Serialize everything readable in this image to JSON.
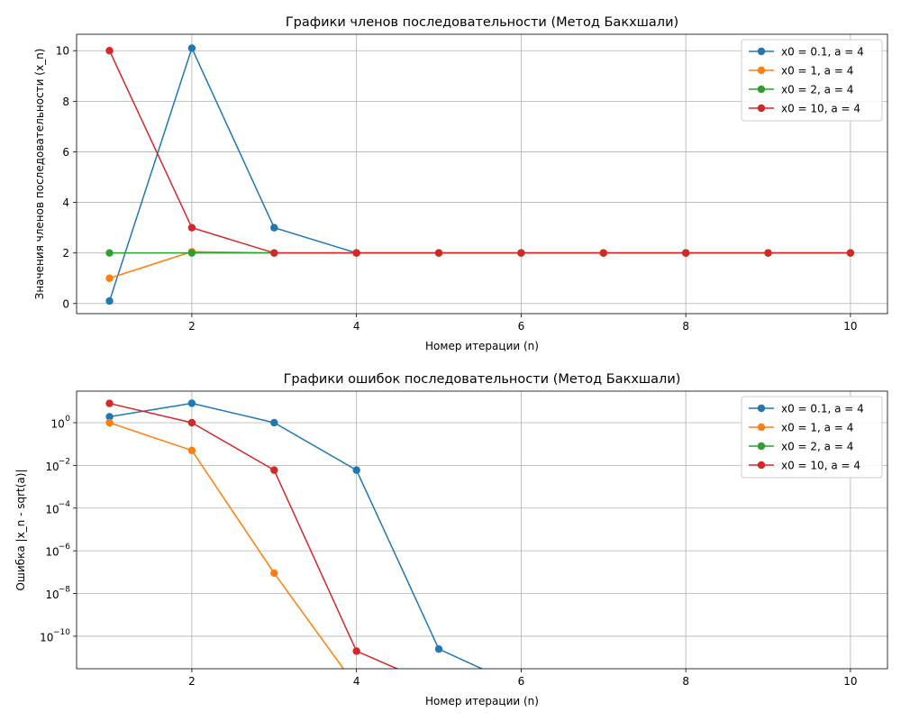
{
  "chart_data": [
    {
      "type": "line",
      "title": "Графики членов последовательности (Метод Бакхшали)",
      "xlabel": "Номер итерации (n)",
      "ylabel": "Значения членов последовательности (x_n)",
      "xlim": [
        0.6,
        10.45
      ],
      "ylim": [
        -0.4,
        10.65
      ],
      "yscale": "linear",
      "xticks": [
        2,
        4,
        6,
        8,
        10
      ],
      "xtick_labels": [
        "2",
        "4",
        "6",
        "8",
        "10"
      ],
      "yticks": [
        0,
        2,
        4,
        6,
        8,
        10
      ],
      "ytick_labels": [
        "0",
        "2",
        "4",
        "6",
        "8",
        "10"
      ],
      "grid": true,
      "legend_position": "top-right",
      "x": [
        1,
        2,
        3,
        4,
        5,
        6,
        7,
        8,
        9,
        10
      ],
      "series": [
        {
          "name": "x0 = 0.1, a = 4",
          "color": "#1f77b4",
          "values": [
            0.1,
            10.1,
            3.0,
            2.0,
            2.0,
            2.0,
            2.0,
            2.0,
            2.0,
            2.0
          ]
        },
        {
          "name": "x0 = 1, a = 4",
          "color": "#ff7f0e",
          "values": [
            1.0,
            2.05,
            2.0,
            2.0,
            2.0,
            2.0,
            2.0,
            2.0,
            2.0,
            2.0
          ]
        },
        {
          "name": "x0 = 2, a = 4",
          "color": "#2ca02c",
          "values": [
            2.0,
            2.0,
            2.0,
            2.0,
            2.0,
            2.0,
            2.0,
            2.0,
            2.0,
            2.0
          ]
        },
        {
          "name": "x0 = 10, a = 4",
          "color": "#d62728",
          "values": [
            10.0,
            3.0,
            2.0,
            2.0,
            2.0,
            2.0,
            2.0,
            2.0,
            2.0,
            2.0
          ]
        }
      ]
    },
    {
      "type": "line",
      "title": "Графики ошибок последовательности (Метод Бакхшали)",
      "xlabel": "Номер итерации (n)",
      "ylabel": "Ошибка |x_n - sqrt(a)|",
      "xlim": [
        0.6,
        10.45
      ],
      "ylim": [
        3e-12,
        30
      ],
      "yscale": "log",
      "xticks": [
        2,
        4,
        6,
        8,
        10
      ],
      "xtick_labels": [
        "2",
        "4",
        "6",
        "8",
        "10"
      ],
      "yticks": [
        1,
        0.01,
        0.0001,
        1e-06,
        1e-08,
        1e-10
      ],
      "ytick_labels": [
        {
          "base": "10",
          "exp": "0"
        },
        {
          "base": "10",
          "exp": "−2"
        },
        {
          "base": "10",
          "exp": "−4"
        },
        {
          "base": "10",
          "exp": "−6"
        },
        {
          "base": "10",
          "exp": "−8"
        },
        {
          "base": "10",
          "exp": "−10"
        }
      ],
      "grid": true,
      "legend_position": "top-right",
      "x": [
        1,
        2,
        3,
        4,
        5,
        6,
        7,
        8,
        9,
        10
      ],
      "series": [
        {
          "name": "x0 = 0.1, a = 4",
          "color": "#1f77b4",
          "values": [
            1.9,
            8.1,
            1.0,
            0.006,
            2.5e-11,
            0,
            0,
            0,
            0,
            0
          ]
        },
        {
          "name": "x0 = 1, a = 4",
          "color": "#ff7f0e",
          "values": [
            1.0,
            0.05,
            9e-08,
            0,
            0,
            0,
            0,
            0,
            0,
            0
          ]
        },
        {
          "name": "x0 = 2, a = 4",
          "color": "#2ca02c",
          "values": [
            0,
            0,
            0,
            0,
            0,
            0,
            0,
            0,
            0,
            0
          ]
        },
        {
          "name": "x0 = 10, a = 4",
          "color": "#d62728",
          "values": [
            8.0,
            1.0,
            0.006,
            2e-11,
            0,
            0,
            0,
            0,
            0,
            0
          ]
        }
      ]
    }
  ]
}
